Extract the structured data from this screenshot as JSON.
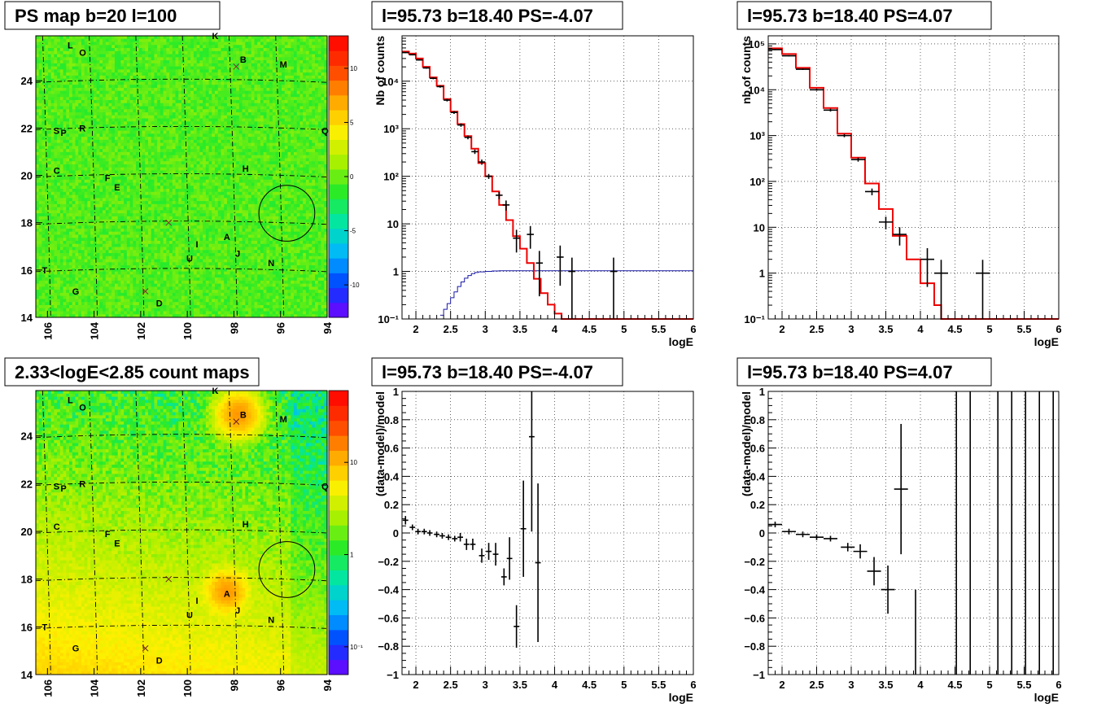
{
  "chart_data": [
    {
      "panel": "ps-map",
      "type": "heatmap",
      "title": "PS map b=20 l=100",
      "x_ticks": [
        "106",
        "104",
        "102",
        "100",
        "98",
        "96",
        "94"
      ],
      "y_ticks": [
        "14",
        "16",
        "18",
        "20",
        "22",
        "24"
      ],
      "xlim": [
        94,
        106.5
      ],
      "ylim": [
        14,
        25.9
      ],
      "x_reversed": true,
      "colorbar": {
        "min": -13,
        "max": 13,
        "ticks": [
          "10",
          "5",
          "0",
          "-5",
          "-10"
        ],
        "tick_values": [
          10,
          5,
          0,
          -5,
          -10
        ]
      },
      "background_color": "#2ee82e",
      "labels": [
        {
          "text": "L",
          "l": 105.0,
          "b": 25.5
        },
        {
          "text": "O",
          "l": 104.5,
          "b": 25.2
        },
        {
          "text": "K",
          "l": 98.8,
          "b": 25.9
        },
        {
          "text": "B",
          "l": 97.6,
          "b": 24.9
        },
        {
          "text": "M",
          "l": 95.9,
          "b": 24.7
        },
        {
          "text": "S",
          "l": 105.6,
          "b": 21.9
        },
        {
          "text": "P",
          "l": 105.3,
          "b": 21.8
        },
        {
          "text": "R",
          "l": 104.5,
          "b": 22.0
        },
        {
          "text": "Q",
          "l": 94.1,
          "b": 21.9
        },
        {
          "text": "C",
          "l": 105.6,
          "b": 20.2
        },
        {
          "text": "F",
          "l": 103.4,
          "b": 19.9
        },
        {
          "text": "E",
          "l": 103.0,
          "b": 19.5
        },
        {
          "text": "H",
          "l": 97.5,
          "b": 20.3
        },
        {
          "text": "I",
          "l": 99.5,
          "b": 17.1
        },
        {
          "text": "A",
          "l": 98.3,
          "b": 17.4
        },
        {
          "text": "J",
          "l": 97.8,
          "b": 16.7
        },
        {
          "text": "U",
          "l": 99.9,
          "b": 16.5
        },
        {
          "text": "N",
          "l": 96.4,
          "b": 16.3
        },
        {
          "text": "T",
          "l": 106.1,
          "b": 16.0
        },
        {
          "text": "G",
          "l": 104.8,
          "b": 15.1
        },
        {
          "text": "D",
          "l": 101.2,
          "b": 14.6
        }
      ],
      "crosses": [
        {
          "l": 97.9,
          "b": 24.6
        },
        {
          "l": 100.8,
          "b": 18.0
        },
        {
          "l": 101.8,
          "b": 15.1
        }
      ],
      "circle": {
        "l": 95.73,
        "b": 18.4,
        "r": 0.5
      }
    },
    {
      "panel": "spectrum-neg",
      "type": "line",
      "title": "l=95.73 b=18.40 PS=-4.07",
      "xlabel": "logE",
      "ylabel": "Nb of counts",
      "log_y": true,
      "xlim": [
        1.8,
        6.0
      ],
      "ylim": [
        0.1,
        90000
      ],
      "x_ticks": [
        2,
        2.5,
        3,
        3.5,
        4,
        4.5,
        5,
        5.5,
        6
      ],
      "x_tick_labels": [
        "2",
        "2.5",
        "3",
        "3.5",
        "4",
        "4.5",
        "5",
        "5.5",
        "6"
      ],
      "y_tick_values": [
        0.1,
        1,
        10,
        100,
        1000,
        10000
      ],
      "y_tick_labels": [
        "10⁻¹",
        "1",
        "10",
        "10²",
        "10³",
        "10⁴"
      ],
      "grid": true,
      "model_bin_width": 0.1,
      "model_edges": [
        1.8,
        1.9,
        2.0,
        2.1,
        2.2,
        2.3,
        2.4,
        2.5,
        2.6,
        2.7,
        2.8,
        2.9,
        3.0,
        3.1,
        3.2,
        3.3,
        3.4,
        3.5,
        3.6,
        3.7,
        3.8,
        3.9,
        4.0,
        4.1,
        4.2,
        4.3,
        6.0
      ],
      "model_values": [
        42000,
        38000,
        30000,
        20000,
        12000,
        8000,
        4200,
        2300,
        1250,
        700,
        380,
        190,
        100,
        48,
        25,
        12,
        5.5,
        3.0,
        1.5,
        0.7,
        0.35,
        0.2,
        0.13,
        0.1,
        0.1,
        0.1
      ],
      "series2_edges": [
        2.35,
        2.4,
        2.45,
        2.5,
        2.55,
        2.6,
        2.65,
        2.7,
        2.75,
        2.8,
        2.85,
        2.9,
        3.0,
        3.1,
        3.2,
        6.0
      ],
      "series2_values": [
        0.12,
        0.16,
        0.21,
        0.28,
        0.37,
        0.48,
        0.6,
        0.72,
        0.82,
        0.9,
        0.95,
        0.98,
        1.0,
        1.02,
        1.03
      ],
      "data_points": [
        {
          "x": 1.85,
          "y": 40000,
          "err": 1200,
          "xerr": 0.05
        },
        {
          "x": 1.95,
          "y": 36000,
          "err": 1100,
          "xerr": 0.05
        },
        {
          "x": 2.05,
          "y": 28000,
          "err": 900,
          "xerr": 0.05
        },
        {
          "x": 2.15,
          "y": 19000,
          "err": 700,
          "xerr": 0.05
        },
        {
          "x": 2.25,
          "y": 11500,
          "err": 500,
          "xerr": 0.05
        },
        {
          "x": 2.35,
          "y": 7700,
          "err": 400,
          "xerr": 0.05
        },
        {
          "x": 2.45,
          "y": 4000,
          "err": 250,
          "xerr": 0.05
        },
        {
          "x": 2.55,
          "y": 2200,
          "err": 150,
          "xerr": 0.05
        },
        {
          "x": 2.65,
          "y": 1200,
          "err": 100,
          "xerr": 0.05
        },
        {
          "x": 2.75,
          "y": 660,
          "err": 60,
          "xerr": 0.05
        },
        {
          "x": 2.85,
          "y": 330,
          "err": 35,
          "xerr": 0.05
        },
        {
          "x": 2.95,
          "y": 200,
          "err": 25,
          "xerr": 0.05
        },
        {
          "x": 3.05,
          "y": 100,
          "err": 12,
          "xerr": 0.05
        },
        {
          "x": 3.2,
          "y": 40,
          "err": 7,
          "xerr": 0.05
        },
        {
          "x": 3.3,
          "y": 25,
          "err": 6,
          "xerr": 0.05
        },
        {
          "x": 3.45,
          "y": 5,
          "err": 2.5,
          "xerr": 0.05
        },
        {
          "x": 3.65,
          "y": 6,
          "err": 3,
          "xerr": 0.05
        },
        {
          "x": 3.78,
          "y": 1.5,
          "err": 1.2,
          "xerr": 0.05
        },
        {
          "x": 4.08,
          "y": 2,
          "err": 1.5,
          "xerr": 0.05
        },
        {
          "x": 4.25,
          "y": 1.0,
          "err": 0.95,
          "xerr": 0.05
        },
        {
          "x": 4.85,
          "y": 1.0,
          "err": 0.95,
          "xerr": 0.05
        }
      ]
    },
    {
      "panel": "spectrum-pos",
      "type": "line",
      "title": "l=95.73 b=18.40 PS=4.07",
      "xlabel": "logE",
      "ylabel": "nb of counts",
      "log_y": true,
      "xlim": [
        1.8,
        6.0
      ],
      "ylim": [
        0.1,
        150000
      ],
      "x_ticks": [
        2,
        2.5,
        3,
        3.5,
        4,
        4.5,
        5,
        5.5,
        6
      ],
      "x_tick_labels": [
        "2",
        "2.5",
        "3",
        "3.5",
        "4",
        "4.5",
        "5",
        "5.5",
        "6"
      ],
      "y_tick_values": [
        0.1,
        1,
        10,
        100,
        1000,
        10000,
        100000
      ],
      "y_tick_labels": [
        "10⁻¹",
        "1",
        "10",
        "10²",
        "10³",
        "10⁴",
        "10⁵"
      ],
      "grid": true,
      "model_edges": [
        1.8,
        2.0,
        2.2,
        2.4,
        2.6,
        2.8,
        3.0,
        3.2,
        3.4,
        3.6,
        3.8,
        4.0,
        4.2,
        4.3,
        6.0
      ],
      "model_values": [
        80000,
        60000,
        30000,
        11000,
        4000,
        1100,
        330,
        90,
        25,
        6.5,
        2.0,
        0.6,
        0.2,
        0.1
      ],
      "data_points": [
        {
          "x": 1.9,
          "y": 75000,
          "err": 2000,
          "xerr": 0.1
        },
        {
          "x": 2.1,
          "y": 55000,
          "err": 1500,
          "xerr": 0.1
        },
        {
          "x": 2.3,
          "y": 28000,
          "err": 1000,
          "xerr": 0.1
        },
        {
          "x": 2.5,
          "y": 10000,
          "err": 500,
          "xerr": 0.1
        },
        {
          "x": 2.7,
          "y": 3600,
          "err": 250,
          "xerr": 0.1
        },
        {
          "x": 2.9,
          "y": 1000,
          "err": 80,
          "xerr": 0.1
        },
        {
          "x": 3.1,
          "y": 300,
          "err": 30,
          "xerr": 0.1
        },
        {
          "x": 3.3,
          "y": 60,
          "err": 10,
          "xerr": 0.1
        },
        {
          "x": 3.5,
          "y": 13,
          "err": 4,
          "xerr": 0.1
        },
        {
          "x": 3.7,
          "y": 7,
          "err": 3,
          "xerr": 0.1
        },
        {
          "x": 4.1,
          "y": 2,
          "err": 1.5,
          "xerr": 0.1
        },
        {
          "x": 4.3,
          "y": 1,
          "err": 0.95,
          "xerr": 0.1
        },
        {
          "x": 4.9,
          "y": 1,
          "err": 0.95,
          "xerr": 0.1
        }
      ]
    },
    {
      "panel": "count-map",
      "type": "heatmap",
      "title": "2.33<logE<2.85 count maps",
      "x_ticks": [
        "106",
        "104",
        "102",
        "100",
        "98",
        "96",
        "94"
      ],
      "y_ticks": [
        "14",
        "16",
        "18",
        "20",
        "22",
        "24"
      ],
      "xlim": [
        94,
        106.5
      ],
      "ylim": [
        14,
        25.9
      ],
      "x_reversed": true,
      "colorbar": {
        "log": true,
        "min": 0.05,
        "max": 60,
        "ticks": [
          "10",
          "1",
          "10⁻¹"
        ],
        "tick_values": [
          10,
          1,
          0.1
        ]
      },
      "background_color": "#ee7b1c",
      "labels": [
        {
          "text": "L",
          "l": 105.0,
          "b": 25.5
        },
        {
          "text": "O",
          "l": 104.5,
          "b": 25.2
        },
        {
          "text": "K",
          "l": 98.8,
          "b": 25.9
        },
        {
          "text": "B",
          "l": 97.6,
          "b": 24.9
        },
        {
          "text": "M",
          "l": 95.9,
          "b": 24.7
        },
        {
          "text": "S",
          "l": 105.6,
          "b": 21.9
        },
        {
          "text": "P",
          "l": 105.3,
          "b": 21.8
        },
        {
          "text": "R",
          "l": 104.5,
          "b": 22.0
        },
        {
          "text": "Q",
          "l": 94.1,
          "b": 21.9
        },
        {
          "text": "C",
          "l": 105.6,
          "b": 20.2
        },
        {
          "text": "F",
          "l": 103.4,
          "b": 19.9
        },
        {
          "text": "E",
          "l": 103.0,
          "b": 19.5
        },
        {
          "text": "H",
          "l": 97.5,
          "b": 20.3
        },
        {
          "text": "I",
          "l": 99.5,
          "b": 17.1
        },
        {
          "text": "A",
          "l": 98.3,
          "b": 17.4
        },
        {
          "text": "J",
          "l": 97.8,
          "b": 16.7
        },
        {
          "text": "U",
          "l": 99.9,
          "b": 16.5
        },
        {
          "text": "N",
          "l": 96.4,
          "b": 16.3
        },
        {
          "text": "T",
          "l": 106.1,
          "b": 16.0
        },
        {
          "text": "G",
          "l": 104.8,
          "b": 15.1
        },
        {
          "text": "D",
          "l": 101.2,
          "b": 14.6
        }
      ],
      "crosses": [
        {
          "l": 97.9,
          "b": 24.6
        },
        {
          "l": 100.8,
          "b": 18.0
        },
        {
          "l": 101.8,
          "b": 15.1
        }
      ],
      "circle": {
        "l": 95.73,
        "b": 18.4,
        "r": 0.5
      }
    },
    {
      "panel": "residual-neg",
      "type": "scatter",
      "title": "l=95.73 b=18.40 PS=-4.07",
      "xlabel": "logE",
      "ylabel": "(data-model)/model",
      "xlim": [
        1.8,
        6.0
      ],
      "ylim": [
        -1,
        1
      ],
      "x_ticks": [
        2,
        2.5,
        3,
        3.5,
        4,
        4.5,
        5,
        5.5,
        6
      ],
      "x_tick_labels": [
        "2",
        "2.5",
        "3",
        "3.5",
        "4",
        "4.5",
        "5",
        "5.5",
        "6"
      ],
      "y_ticks": [
        1,
        0.8,
        0.6,
        0.4,
        0.2,
        0,
        -0.2,
        -0.4,
        -0.6,
        -0.8,
        -1
      ],
      "y_tick_labels": [
        "1",
        "0.8",
        "0.6",
        "0.4",
        "0.2",
        "0",
        "−0.2",
        "−0.4",
        "−0.6",
        "−0.8",
        "−1"
      ],
      "grid": true,
      "data_points": [
        {
          "x": 1.85,
          "y": 0.09,
          "err": 0.03,
          "xerr": 0.04
        },
        {
          "x": 1.95,
          "y": 0.04,
          "err": 0.02,
          "xerr": 0.04
        },
        {
          "x": 2.03,
          "y": 0.01,
          "err": 0.02,
          "xerr": 0.04
        },
        {
          "x": 2.12,
          "y": 0.01,
          "err": 0.02,
          "xerr": 0.04
        },
        {
          "x": 2.2,
          "y": 0.0,
          "err": 0.02,
          "xerr": 0.04
        },
        {
          "x": 2.3,
          "y": -0.01,
          "err": 0.02,
          "xerr": 0.04
        },
        {
          "x": 2.38,
          "y": -0.02,
          "err": 0.02,
          "xerr": 0.04
        },
        {
          "x": 2.47,
          "y": -0.03,
          "err": 0.02,
          "xerr": 0.04
        },
        {
          "x": 2.56,
          "y": -0.04,
          "err": 0.02,
          "xerr": 0.04
        },
        {
          "x": 2.64,
          "y": -0.03,
          "err": 0.03,
          "xerr": 0.04
        },
        {
          "x": 2.73,
          "y": -0.08,
          "err": 0.04,
          "xerr": 0.04
        },
        {
          "x": 2.82,
          "y": -0.08,
          "err": 0.04,
          "xerr": 0.04
        },
        {
          "x": 2.95,
          "y": -0.16,
          "err": 0.05,
          "xerr": 0.04
        },
        {
          "x": 3.05,
          "y": -0.13,
          "err": 0.06,
          "xerr": 0.04
        },
        {
          "x": 3.15,
          "y": -0.15,
          "err": 0.08,
          "xerr": 0.04
        },
        {
          "x": 3.27,
          "y": -0.31,
          "err": 0.06,
          "xerr": 0.04
        },
        {
          "x": 3.35,
          "y": -0.18,
          "err": 0.15,
          "xerr": 0.04
        },
        {
          "x": 3.45,
          "y": -0.66,
          "err": 0.15,
          "xerr": 0.04
        },
        {
          "x": 3.55,
          "y": 0.03,
          "err": 0.34,
          "xerr": 0.04
        },
        {
          "x": 3.67,
          "y": 0.68,
          "err": 0.67,
          "xerr": 0.04
        },
        {
          "x": 3.76,
          "y": -0.21,
          "err": 0.56,
          "xerr": 0.04
        }
      ]
    },
    {
      "panel": "residual-pos",
      "type": "scatter",
      "title": "l=95.73 b=18.40 PS=4.07",
      "xlabel": "logE",
      "ylabel": "(data-model)/model",
      "xlim": [
        1.8,
        6.0
      ],
      "ylim": [
        -1,
        1
      ],
      "x_ticks": [
        2,
        2.5,
        3,
        3.5,
        4,
        4.5,
        5,
        5.5,
        6
      ],
      "x_tick_labels": [
        "2",
        "2.5",
        "3",
        "3.5",
        "4",
        "4.5",
        "5",
        "5.5",
        "6"
      ],
      "y_ticks": [
        1,
        0.8,
        0.6,
        0.4,
        0.2,
        0,
        -0.2,
        -0.4,
        -0.6,
        -0.8,
        -1
      ],
      "y_tick_labels": [
        "1",
        "0.8",
        "0.6",
        "0.4",
        "0.2",
        "0",
        "−0.2",
        "−0.4",
        "−0.6",
        "−0.8",
        "−1"
      ],
      "grid": true,
      "data_points": [
        {
          "x": 1.9,
          "y": 0.06,
          "err": 0.02,
          "xerr": 0.1
        },
        {
          "x": 2.1,
          "y": 0.01,
          "err": 0.02,
          "xerr": 0.1
        },
        {
          "x": 2.3,
          "y": -0.01,
          "err": 0.02,
          "xerr": 0.1
        },
        {
          "x": 2.5,
          "y": -0.03,
          "err": 0.02,
          "xerr": 0.1
        },
        {
          "x": 2.7,
          "y": -0.04,
          "err": 0.02,
          "xerr": 0.1
        },
        {
          "x": 2.95,
          "y": -0.1,
          "err": 0.03,
          "xerr": 0.1
        },
        {
          "x": 3.13,
          "y": -0.13,
          "err": 0.05,
          "xerr": 0.1
        },
        {
          "x": 3.33,
          "y": -0.27,
          "err": 0.1,
          "xerr": 0.1
        },
        {
          "x": 3.53,
          "y": -0.4,
          "err": 0.17,
          "xerr": 0.1
        },
        {
          "x": 3.72,
          "y": 0.31,
          "err": 0.46,
          "xerr": 0.1
        },
        {
          "x": 3.93,
          "y": -1.0,
          "yhigh": -0.4,
          "full": true
        },
        {
          "x": 4.52,
          "y": -1.0,
          "yhigh": 1.0,
          "full": true
        },
        {
          "x": 4.72,
          "y": -1.0,
          "yhigh": 1.0,
          "full": true
        },
        {
          "x": 5.12,
          "y": -1.0,
          "yhigh": 1.0,
          "full": true
        },
        {
          "x": 5.32,
          "y": -1.0,
          "yhigh": 1.0,
          "full": true
        },
        {
          "x": 5.52,
          "y": -1.0,
          "yhigh": 1.0,
          "full": true
        },
        {
          "x": 5.72,
          "y": -1.0,
          "yhigh": 1.0,
          "full": true
        },
        {
          "x": 5.92,
          "y": -1.0,
          "yhigh": 1.0,
          "full": true
        }
      ]
    }
  ]
}
